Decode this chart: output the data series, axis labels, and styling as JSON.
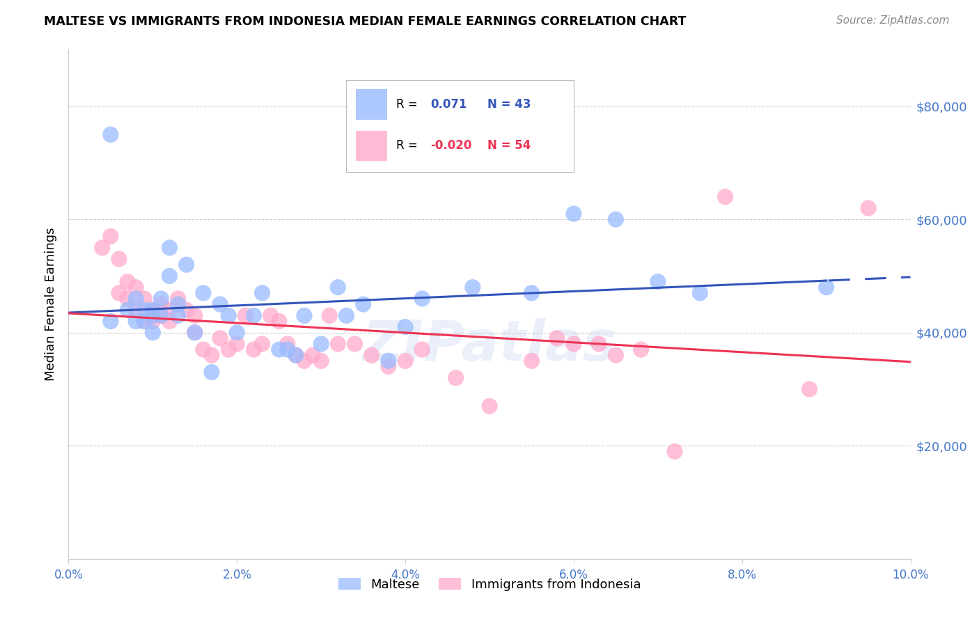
{
  "title": "MALTESE VS IMMIGRANTS FROM INDONESIA MEDIAN FEMALE EARNINGS CORRELATION CHART",
  "source": "Source: ZipAtlas.com",
  "ylabel": "Median Female Earnings",
  "watermark": "ZIPatlas",
  "xlim": [
    0.0,
    0.1
  ],
  "ylim": [
    0,
    90000
  ],
  "yticks": [
    0,
    20000,
    40000,
    60000,
    80000
  ],
  "ytick_labels_right": [
    "",
    "$20,000",
    "$40,000",
    "$60,000",
    "$80,000"
  ],
  "xticks": [
    0.0,
    0.02,
    0.04,
    0.06,
    0.08,
    0.1
  ],
  "xtick_labels": [
    "0.0%",
    "2.0%",
    "4.0%",
    "6.0%",
    "8.0%",
    "10.0%"
  ],
  "blue_color": "#99bbff",
  "pink_color": "#ffaacc",
  "blue_line_color": "#3355bb",
  "pink_line_color": "#ee3355",
  "axis_color": "#4477cc",
  "grid_color": "#cccccc",
  "background_color": "#ffffff",
  "maltese_x": [
    0.005,
    0.005,
    0.007,
    0.008,
    0.008,
    0.009,
    0.009,
    0.01,
    0.01,
    0.01,
    0.011,
    0.011,
    0.012,
    0.012,
    0.013,
    0.013,
    0.014,
    0.015,
    0.016,
    0.017,
    0.018,
    0.019,
    0.02,
    0.022,
    0.023,
    0.025,
    0.026,
    0.027,
    0.028,
    0.03,
    0.032,
    0.033,
    0.035,
    0.038,
    0.04,
    0.042,
    0.048,
    0.055,
    0.06,
    0.065,
    0.07,
    0.075,
    0.09
  ],
  "maltese_y": [
    75000,
    42000,
    44000,
    46000,
    42000,
    44000,
    42000,
    44000,
    43000,
    40000,
    46000,
    43000,
    55000,
    50000,
    45000,
    43000,
    52000,
    40000,
    47000,
    33000,
    45000,
    43000,
    40000,
    43000,
    47000,
    37000,
    37000,
    36000,
    43000,
    38000,
    48000,
    43000,
    45000,
    35000,
    41000,
    46000,
    48000,
    47000,
    61000,
    60000,
    49000,
    47000,
    48000
  ],
  "indonesia_x": [
    0.004,
    0.005,
    0.006,
    0.006,
    0.007,
    0.007,
    0.008,
    0.008,
    0.009,
    0.009,
    0.01,
    0.01,
    0.011,
    0.011,
    0.012,
    0.012,
    0.013,
    0.014,
    0.015,
    0.015,
    0.016,
    0.017,
    0.018,
    0.019,
    0.02,
    0.021,
    0.022,
    0.023,
    0.024,
    0.025,
    0.026,
    0.027,
    0.028,
    0.029,
    0.03,
    0.031,
    0.032,
    0.034,
    0.036,
    0.038,
    0.04,
    0.042,
    0.046,
    0.05,
    0.055,
    0.058,
    0.06,
    0.063,
    0.065,
    0.068,
    0.072,
    0.078,
    0.088,
    0.095
  ],
  "indonesia_y": [
    55000,
    57000,
    53000,
    47000,
    49000,
    46000,
    48000,
    44000,
    46000,
    42000,
    44000,
    42000,
    45000,
    43000,
    44000,
    42000,
    46000,
    44000,
    43000,
    40000,
    37000,
    36000,
    39000,
    37000,
    38000,
    43000,
    37000,
    38000,
    43000,
    42000,
    38000,
    36000,
    35000,
    36000,
    35000,
    43000,
    38000,
    38000,
    36000,
    34000,
    35000,
    37000,
    32000,
    27000,
    35000,
    39000,
    38000,
    38000,
    36000,
    37000,
    19000,
    64000,
    30000,
    62000
  ]
}
